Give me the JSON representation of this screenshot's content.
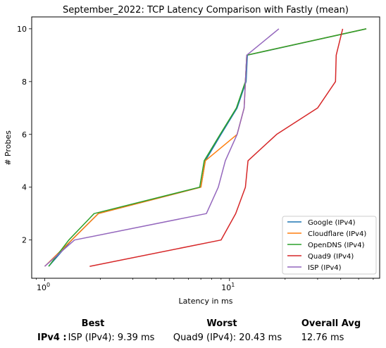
{
  "chart_data": {
    "type": "line",
    "title": "September_2022: TCP Latency Comparison with Fastly (mean)",
    "xlabel": "Latency in ms",
    "ylabel": "# Probes",
    "xscale": "log",
    "xlim": [
      0.85,
      65
    ],
    "ylim": [
      0.55,
      10.45
    ],
    "x_ticks": [
      {
        "value": 1,
        "label": "10^0"
      },
      {
        "value": 10,
        "label": "10^1"
      }
    ],
    "y_ticks": [
      2,
      4,
      6,
      8,
      10
    ],
    "grid": false,
    "legend_position": "lower right",
    "series": [
      {
        "name": "Google (IPv4)",
        "color": "#1f77b4",
        "points": [
          [
            1.05,
            1
          ],
          [
            1.4,
            2
          ],
          [
            1.95,
            3
          ],
          [
            7.0,
            4
          ],
          [
            7.4,
            5
          ],
          [
            9.0,
            6
          ],
          [
            11.0,
            7
          ],
          [
            12.3,
            8
          ],
          [
            12.5,
            9
          ],
          [
            55.0,
            10
          ]
        ]
      },
      {
        "name": "Cloudflare (IPv4)",
        "color": "#ff7f0e",
        "points": [
          [
            1.0,
            1
          ],
          [
            1.4,
            2
          ],
          [
            1.95,
            3
          ],
          [
            7.0,
            4
          ],
          [
            7.4,
            5
          ],
          [
            11.0,
            6
          ],
          [
            12.0,
            7
          ],
          [
            12.2,
            8
          ],
          [
            12.4,
            9
          ],
          [
            55.0,
            10
          ]
        ]
      },
      {
        "name": "OpenDNS (IPv4)",
        "color": "#2ca02c",
        "points": [
          [
            1.05,
            1
          ],
          [
            1.35,
            2
          ],
          [
            1.85,
            3
          ],
          [
            6.9,
            4
          ],
          [
            7.3,
            5
          ],
          [
            8.9,
            6
          ],
          [
            10.9,
            7
          ],
          [
            12.2,
            8
          ],
          [
            12.4,
            9
          ],
          [
            55.0,
            10
          ]
        ]
      },
      {
        "name": "Quad9 (IPv4)",
        "color": "#d62728",
        "points": [
          [
            1.75,
            1
          ],
          [
            9.0,
            2
          ],
          [
            10.8,
            3
          ],
          [
            12.2,
            4
          ],
          [
            12.6,
            5
          ],
          [
            18.0,
            6
          ],
          [
            30.0,
            7
          ],
          [
            37.5,
            8
          ],
          [
            37.8,
            9
          ],
          [
            41.0,
            10
          ]
        ]
      },
      {
        "name": "ISP (IPv4)",
        "color": "#9467bd",
        "points": [
          [
            1.0,
            1
          ],
          [
            1.45,
            2
          ],
          [
            7.5,
            3
          ],
          [
            8.7,
            4
          ],
          [
            9.5,
            5
          ],
          [
            11.0,
            6
          ],
          [
            12.0,
            7
          ],
          [
            12.2,
            8
          ],
          [
            12.4,
            9
          ],
          [
            18.5,
            10
          ]
        ]
      }
    ]
  },
  "summary": {
    "best_header": "Best",
    "worst_header": "Worst",
    "overall_header": "Overall Avg",
    "row_label": "IPv4 :",
    "best_value": "ISP (IPv4): 9.39 ms",
    "worst_value": "Quad9 (IPv4): 20.43 ms",
    "overall_value": "12.76 ms"
  }
}
